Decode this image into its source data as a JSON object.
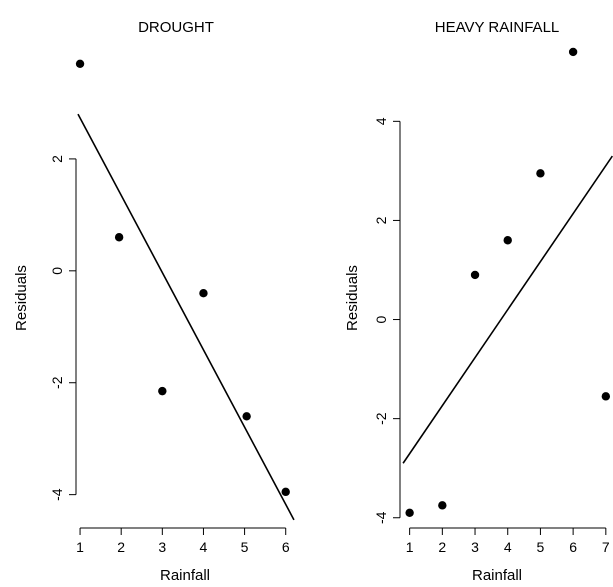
{
  "chart_data": [
    {
      "type": "scatter",
      "title": "DROUGHT",
      "xlabel": "Rainfall",
      "ylabel": "Residuals",
      "x_ticks": [
        1,
        2,
        3,
        4,
        5,
        6
      ],
      "y_ticks": [
        -4,
        -2,
        0,
        2
      ],
      "xlim": [
        0.95,
        6.25
      ],
      "ylim": [
        -4.9,
        4.0
      ],
      "points": [
        {
          "x": 1.0,
          "y": 3.7
        },
        {
          "x": 1.95,
          "y": 0.6
        },
        {
          "x": 3.0,
          "y": -2.15
        },
        {
          "x": 4.0,
          "y": -0.4
        },
        {
          "x": 5.05,
          "y": -2.6
        },
        {
          "x": 6.0,
          "y": -3.95
        }
      ],
      "fit_line": {
        "x": [
          0.95,
          6.2
        ],
        "y": [
          2.8,
          -4.45
        ]
      }
    },
    {
      "type": "scatter",
      "title": "HEAVY RAINFALL",
      "xlabel": "Rainfall",
      "ylabel": "Residuals",
      "x_ticks": [
        1,
        2,
        3,
        4,
        5,
        6,
        7
      ],
      "y_ticks": [
        -4,
        -2,
        0,
        2,
        4
      ],
      "xlim": [
        0.95,
        7.25
      ],
      "ylim": [
        -4.55,
        5.5
      ],
      "points": [
        {
          "x": 1.0,
          "y": -3.9
        },
        {
          "x": 2.0,
          "y": -3.75
        },
        {
          "x": 3.0,
          "y": 0.9
        },
        {
          "x": 4.0,
          "y": 1.6
        },
        {
          "x": 5.0,
          "y": 2.95
        },
        {
          "x": 6.0,
          "y": 5.4
        },
        {
          "x": 7.0,
          "y": -1.55
        }
      ],
      "fit_line": {
        "x": [
          0.8,
          7.2
        ],
        "y": [
          -2.9,
          3.3
        ]
      }
    }
  ]
}
